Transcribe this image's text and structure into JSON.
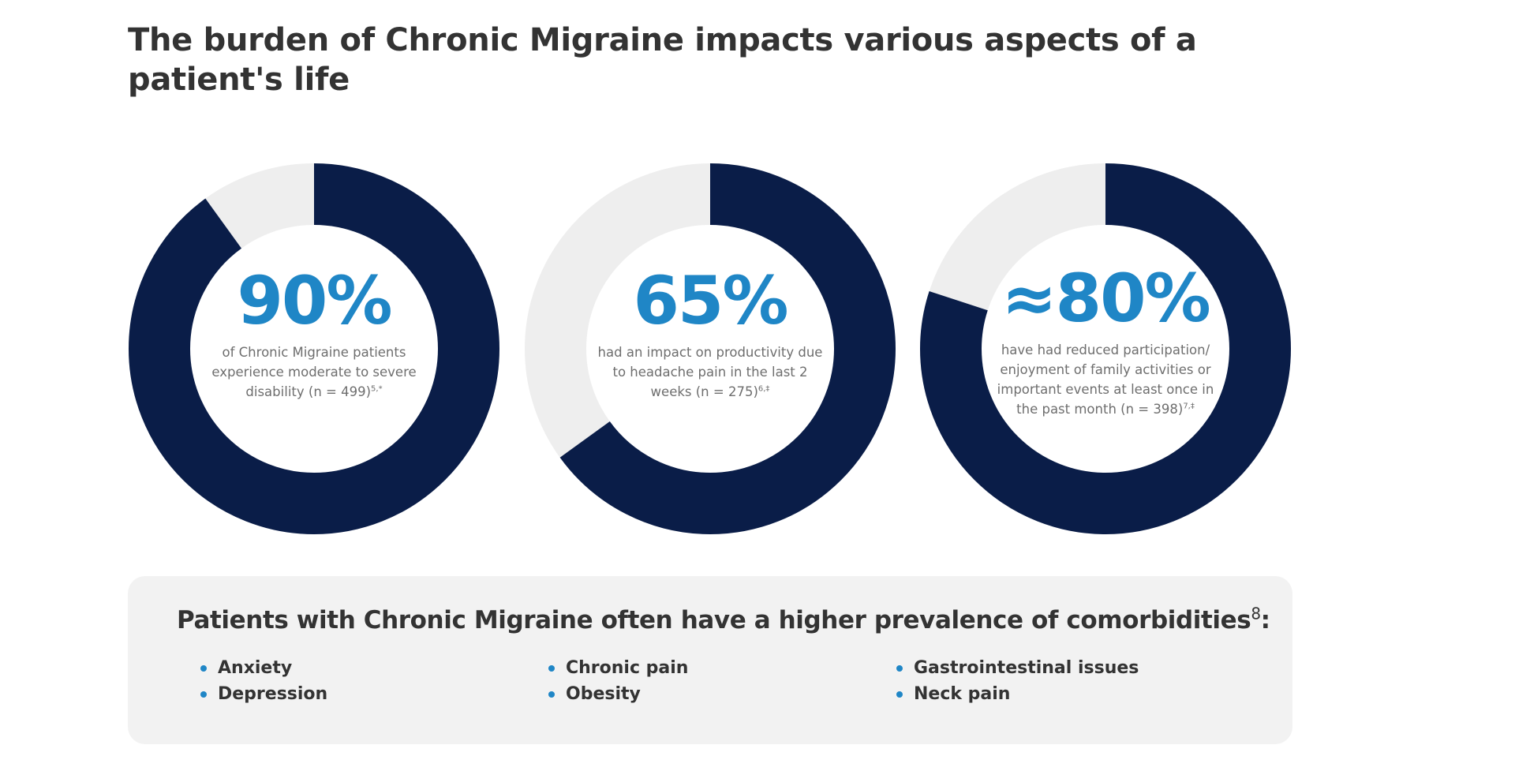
{
  "title": "The burden of Chronic Migraine impacts various aspects of a patient's life",
  "colors": {
    "filled": "#0a1d48",
    "remaining": "#eeeeee",
    "accent": "#1f86c6"
  },
  "chart_data": [
    {
      "type": "pie",
      "value": 90,
      "remaining": 10,
      "label": "90%",
      "description": "of Chronic Migraine patients experience moderate to severe disability (n = 499)",
      "footnote": "5,*"
    },
    {
      "type": "pie",
      "value": 65,
      "remaining": 35,
      "label": "65%",
      "description": "had an impact on productivity due to headache pain in the last 2 weeks (n = 275)",
      "footnote": "6,‡"
    },
    {
      "type": "pie",
      "value": 80,
      "remaining": 20,
      "label": "≈80%",
      "description": "have had reduced participation/ enjoyment of family activities or important events at least once in the past month (n = 398)",
      "footnote": "7,‡"
    }
  ],
  "comorbidities": {
    "title": "Patients with Chronic Migraine often have a higher prevalence of comorbidities",
    "title_ref": "8",
    "title_suffix": ":",
    "columns": [
      [
        "Anxiety",
        "Depression"
      ],
      [
        "Chronic pain",
        "Obesity"
      ],
      [
        "Gastrointestinal issues",
        "Neck pain"
      ]
    ]
  }
}
